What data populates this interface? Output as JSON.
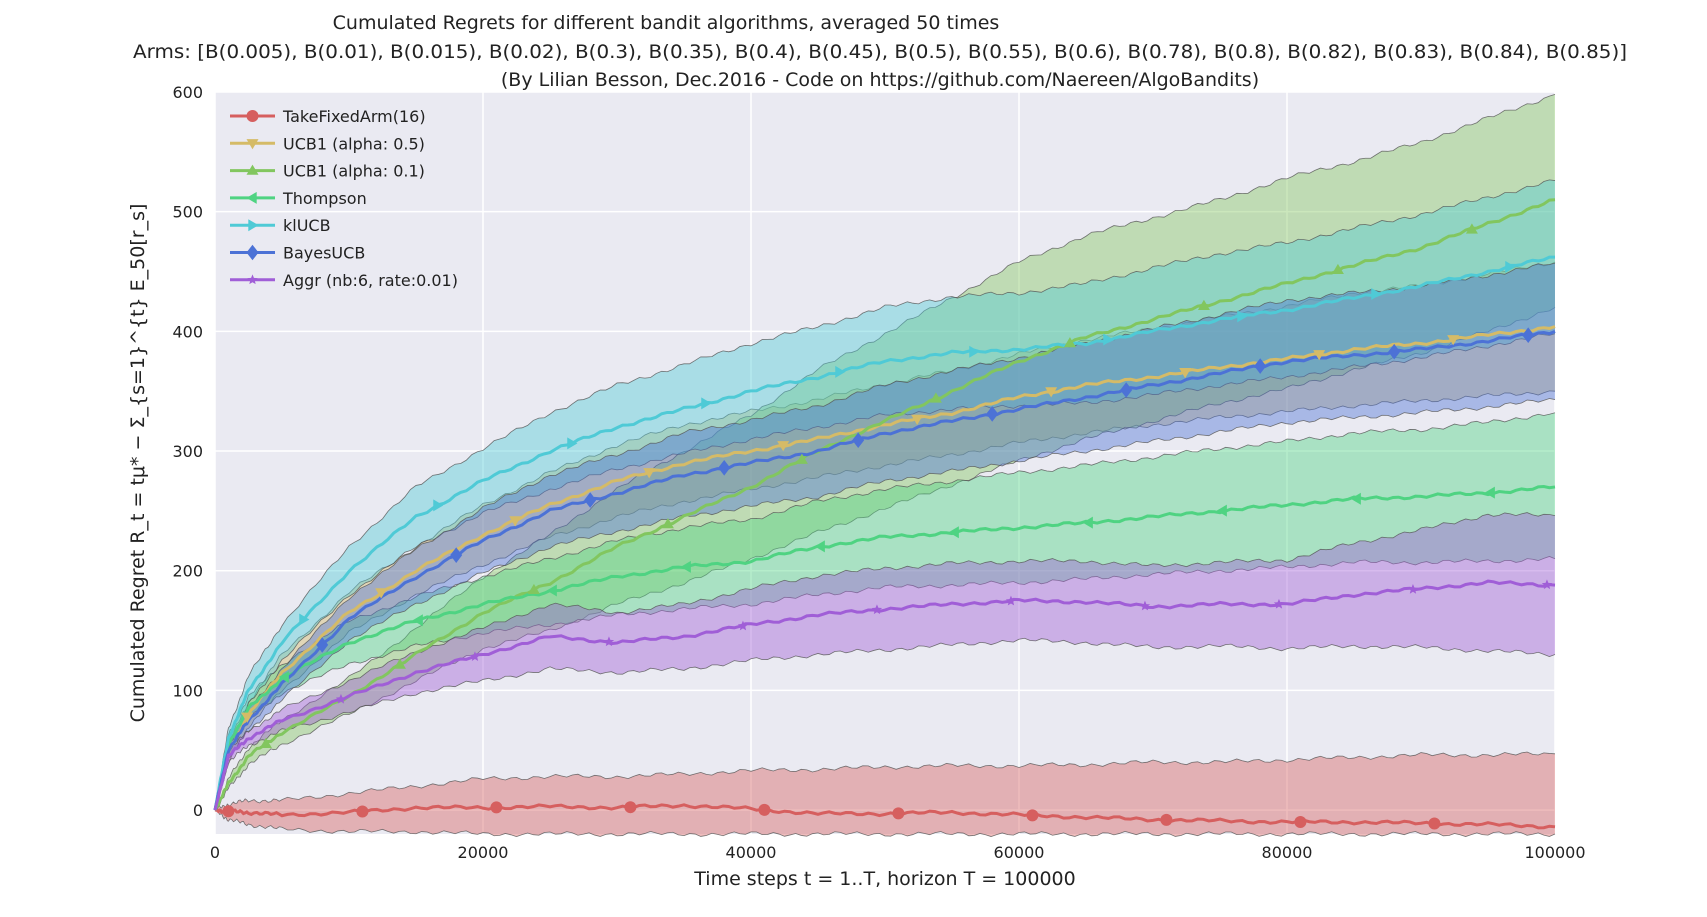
{
  "chart_data": {
    "type": "line",
    "title": "Cumulated Regrets for different bandit algorithms, averaged 50 times",
    "subtitle_arms": "Arms: [B(0.005), B(0.01), B(0.015), B(0.02), B(0.3), B(0.35), B(0.4), B(0.45), B(0.5), B(0.55), B(0.6), B(0.78), B(0.8), B(0.82), B(0.83), B(0.84), B(0.85)]",
    "subtitle_credit": "(By Lilian Besson, Dec.2016 - Code on https://github.com/Naereen/AlgoBandits)",
    "xlabel": "Time steps t = 1..T, horizon T = 100000",
    "ylabel": "Cumulated Regret R_t = tμ* − Σ_{s=1}^{t} E_50[r_s]",
    "xlim": [
      0,
      100000
    ],
    "ylim": [
      -20,
      600
    ],
    "xticks": [
      0,
      20000,
      40000,
      60000,
      80000,
      100000
    ],
    "yticks": [
      0,
      100,
      200,
      300,
      400,
      500,
      600
    ],
    "grid": true,
    "background": "#eaeaf2",
    "legend_position": "top-left",
    "x": [
      0,
      1000,
      2500,
      5000,
      10000,
      15000,
      20000,
      25000,
      30000,
      35000,
      40000,
      45000,
      50000,
      55000,
      60000,
      65000,
      70000,
      75000,
      80000,
      85000,
      90000,
      95000,
      100000
    ],
    "series": [
      {
        "name": "TakeFixedArm(16)",
        "color": "#d65f5f",
        "marker": "circle",
        "values": [
          0,
          -1,
          -2,
          -4,
          -2,
          2,
          2,
          3,
          2,
          4,
          1,
          -3,
          -3,
          -2,
          -4,
          -6,
          -8,
          -9,
          -10,
          -10,
          -11,
          -12,
          -14
        ],
        "lower": [
          0,
          -8,
          -12,
          -16,
          -18,
          -18,
          -20,
          -20,
          -20,
          -20,
          -20,
          -20,
          -20,
          -20,
          -20,
          -20,
          -20,
          -20,
          -20,
          -20,
          -20,
          -20,
          -20
        ],
        "upper": [
          0,
          5,
          8,
          8,
          14,
          20,
          26,
          28,
          28,
          30,
          33,
          34,
          36,
          37,
          37,
          38,
          40,
          40,
          42,
          44,
          46,
          46,
          47
        ]
      },
      {
        "name": "UCB1 (alpha: 0.5)",
        "color": "#d5bb67",
        "marker": "triangle-down",
        "values": [
          0,
          48,
          80,
          115,
          165,
          200,
          230,
          255,
          275,
          290,
          300,
          310,
          322,
          332,
          345,
          355,
          362,
          370,
          377,
          385,
          390,
          397,
          404
        ],
        "lower": [
          0,
          40,
          70,
          100,
          148,
          180,
          205,
          228,
          245,
          258,
          268,
          278,
          288,
          297,
          307,
          315,
          322,
          328,
          333,
          338,
          342,
          346,
          350
        ],
        "upper": [
          0,
          56,
          90,
          130,
          182,
          220,
          255,
          282,
          305,
          322,
          333,
          343,
          356,
          367,
          381,
          393,
          402,
          412,
          421,
          432,
          438,
          448,
          458
        ]
      },
      {
        "name": "UCB1 (alpha: 0.1)",
        "color": "#82c65f",
        "marker": "triangle-up",
        "values": [
          0,
          22,
          45,
          65,
          95,
          130,
          165,
          190,
          220,
          245,
          270,
          300,
          325,
          350,
          375,
          395,
          410,
          425,
          440,
          455,
          470,
          490,
          510
        ],
        "lower": [
          0,
          18,
          38,
          55,
          80,
          108,
          135,
          150,
          172,
          190,
          210,
          232,
          252,
          272,
          292,
          310,
          325,
          340,
          352,
          368,
          382,
          400,
          420
        ],
        "upper": [
          0,
          26,
          52,
          75,
          110,
          152,
          195,
          230,
          268,
          300,
          330,
          368,
          398,
          428,
          458,
          480,
          495,
          510,
          528,
          542,
          558,
          578,
          598
        ]
      },
      {
        "name": "Thompson",
        "color": "#4fd382",
        "marker": "triangle-left",
        "values": [
          0,
          55,
          85,
          110,
          140,
          158,
          172,
          183,
          195,
          203,
          208,
          220,
          228,
          232,
          236,
          240,
          245,
          250,
          255,
          260,
          262,
          265,
          270
        ],
        "lower": [
          0,
          48,
          76,
          98,
          122,
          137,
          148,
          155,
          163,
          168,
          172,
          180,
          186,
          188,
          190,
          193,
          197,
          200,
          203,
          207,
          207,
          208,
          210
        ],
        "upper": [
          0,
          62,
          95,
          122,
          158,
          178,
          195,
          210,
          225,
          236,
          243,
          258,
          268,
          275,
          282,
          288,
          295,
          302,
          308,
          315,
          318,
          324,
          332
        ]
      },
      {
        "name": "klUCB",
        "color": "#4fcad6",
        "marker": "triangle-right",
        "values": [
          0,
          60,
          100,
          140,
          200,
          245,
          275,
          300,
          320,
          335,
          350,
          362,
          375,
          382,
          385,
          390,
          400,
          410,
          418,
          428,
          438,
          450,
          462
        ],
        "lower": [
          0,
          52,
          88,
          125,
          180,
          220,
          248,
          268,
          285,
          298,
          310,
          320,
          330,
          335,
          338,
          340,
          347,
          355,
          362,
          370,
          378,
          388,
          398
        ],
        "upper": [
          0,
          68,
          112,
          155,
          220,
          270,
          302,
          332,
          355,
          372,
          390,
          404,
          420,
          429,
          432,
          440,
          453,
          465,
          474,
          486,
          498,
          512,
          526
        ]
      },
      {
        "name": "BayesUCB",
        "color": "#4c72d6",
        "marker": "diamond",
        "values": [
          0,
          50,
          75,
          105,
          160,
          195,
          225,
          250,
          265,
          280,
          290,
          300,
          315,
          325,
          335,
          345,
          355,
          365,
          375,
          380,
          385,
          392,
          400
        ],
        "lower": [
          0,
          44,
          66,
          92,
          142,
          172,
          198,
          220,
          233,
          245,
          254,
          262,
          275,
          283,
          292,
          300,
          308,
          316,
          324,
          328,
          332,
          337,
          343
        ],
        "upper": [
          0,
          56,
          84,
          118,
          178,
          218,
          252,
          280,
          297,
          315,
          326,
          338,
          355,
          367,
          378,
          390,
          402,
          414,
          426,
          432,
          438,
          447,
          457
        ]
      },
      {
        "name": "Aggr (nb:6, rate:0.01)",
        "color": "#a05ed7",
        "marker": "star",
        "values": [
          0,
          45,
          60,
          75,
          95,
          115,
          130,
          145,
          140,
          145,
          155,
          163,
          168,
          172,
          175,
          174,
          170,
          172,
          172,
          180,
          185,
          190,
          188
        ],
        "lower": [
          0,
          40,
          54,
          66,
          82,
          98,
          108,
          118,
          115,
          118,
          125,
          130,
          134,
          138,
          142,
          140,
          136,
          137,
          135,
          137,
          136,
          133,
          130
        ],
        "upper": [
          0,
          50,
          66,
          84,
          108,
          132,
          152,
          172,
          165,
          172,
          185,
          196,
          202,
          206,
          208,
          208,
          204,
          207,
          209,
          223,
          234,
          247,
          246
        ]
      }
    ]
  }
}
